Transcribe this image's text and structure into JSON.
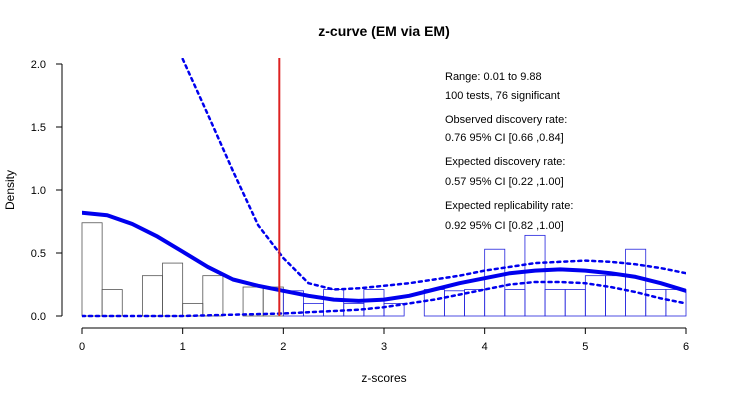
{
  "chart_data": {
    "type": "histogram",
    "title": "z-curve (EM via EM)",
    "xlabel": "z-scores",
    "ylabel": "Density",
    "xlim": [
      0,
      6
    ],
    "ylim": [
      0,
      2.0
    ],
    "x_ticks": [
      "0",
      "1",
      "2",
      "3",
      "4",
      "5",
      "6"
    ],
    "y_ticks": [
      "0.0",
      "0.5",
      "1.0",
      "1.5",
      "2.0"
    ],
    "significance_line": {
      "x": 1.96,
      "color": "#dd2222"
    },
    "histogram": {
      "bin_edges": [
        0.0,
        0.2,
        0.4,
        0.6,
        0.8,
        1.0,
        1.2,
        1.4,
        1.6,
        1.8,
        2.0,
        2.2,
        2.4,
        2.6,
        2.8,
        3.0,
        3.2,
        3.4,
        3.6,
        3.8,
        4.0,
        4.2,
        4.4,
        4.6,
        4.8,
        5.0,
        5.2,
        5.4,
        5.6,
        5.8,
        6.0
      ],
      "densities": [
        0.74,
        0.21,
        0.0,
        0.32,
        0.42,
        0.1,
        0.32,
        0.0,
        0.23,
        0.23,
        0.2,
        0.1,
        0.21,
        0.1,
        0.21,
        0.1,
        0.0,
        0.21,
        0.2,
        0.21,
        0.53,
        0.21,
        0.64,
        0.21,
        0.21,
        0.32,
        0.32,
        0.53,
        0.21,
        0.21
      ],
      "nonsig_color": "#555555",
      "sig_color": "#2222dd"
    },
    "series": [
      {
        "style": "solid",
        "color": "#0000ee",
        "x": [
          0.0,
          0.25,
          0.5,
          0.75,
          1.0,
          1.25,
          1.5,
          1.75,
          2.0,
          2.25,
          2.5,
          2.75,
          3.0,
          3.25,
          3.5,
          3.75,
          4.0,
          4.25,
          4.5,
          4.75,
          5.0,
          5.25,
          5.5,
          5.75,
          6.0
        ],
        "y": [
          0.82,
          0.8,
          0.73,
          0.63,
          0.51,
          0.39,
          0.29,
          0.24,
          0.2,
          0.16,
          0.13,
          0.12,
          0.13,
          0.16,
          0.21,
          0.26,
          0.3,
          0.34,
          0.36,
          0.37,
          0.36,
          0.34,
          0.31,
          0.26,
          0.2
        ]
      },
      {
        "style": "dashed",
        "color": "#0000ee",
        "x": [
          1.0,
          1.25,
          1.5,
          1.75,
          2.0,
          2.25,
          2.5,
          2.75,
          3.0,
          3.25,
          3.5,
          3.75,
          4.0,
          4.25,
          4.5,
          4.75,
          5.0,
          5.25,
          5.5,
          5.75,
          6.0
        ],
        "y": [
          2.04,
          1.6,
          1.15,
          0.72,
          0.46,
          0.26,
          0.21,
          0.22,
          0.24,
          0.26,
          0.29,
          0.32,
          0.36,
          0.39,
          0.42,
          0.43,
          0.44,
          0.43,
          0.41,
          0.38,
          0.34
        ]
      },
      {
        "style": "dashed",
        "color": "#0000ee",
        "x": [
          0.0,
          0.5,
          1.0,
          1.5,
          2.0,
          2.25,
          2.5,
          2.75,
          3.0,
          3.25,
          3.5,
          3.75,
          4.0,
          4.25,
          4.5,
          4.75,
          5.0,
          5.25,
          5.5,
          5.75,
          6.0
        ],
        "y": [
          0.0,
          0.0,
          0.0,
          0.01,
          0.02,
          0.03,
          0.04,
          0.05,
          0.07,
          0.1,
          0.13,
          0.17,
          0.21,
          0.25,
          0.27,
          0.27,
          0.26,
          0.23,
          0.19,
          0.14,
          0.1
        ]
      }
    ],
    "annotations": [
      "Range: 0.01 to 9.88",
      "100 tests, 76 significant",
      "Observed discovery rate:",
      "0.76  95% CI [0.66 ,0.84]",
      "Expected discovery rate:",
      "0.57  95% CI [0.22 ,1.00]",
      "Expected replicability rate:",
      "0.92  95% CI [0.82 ,1.00]"
    ]
  }
}
